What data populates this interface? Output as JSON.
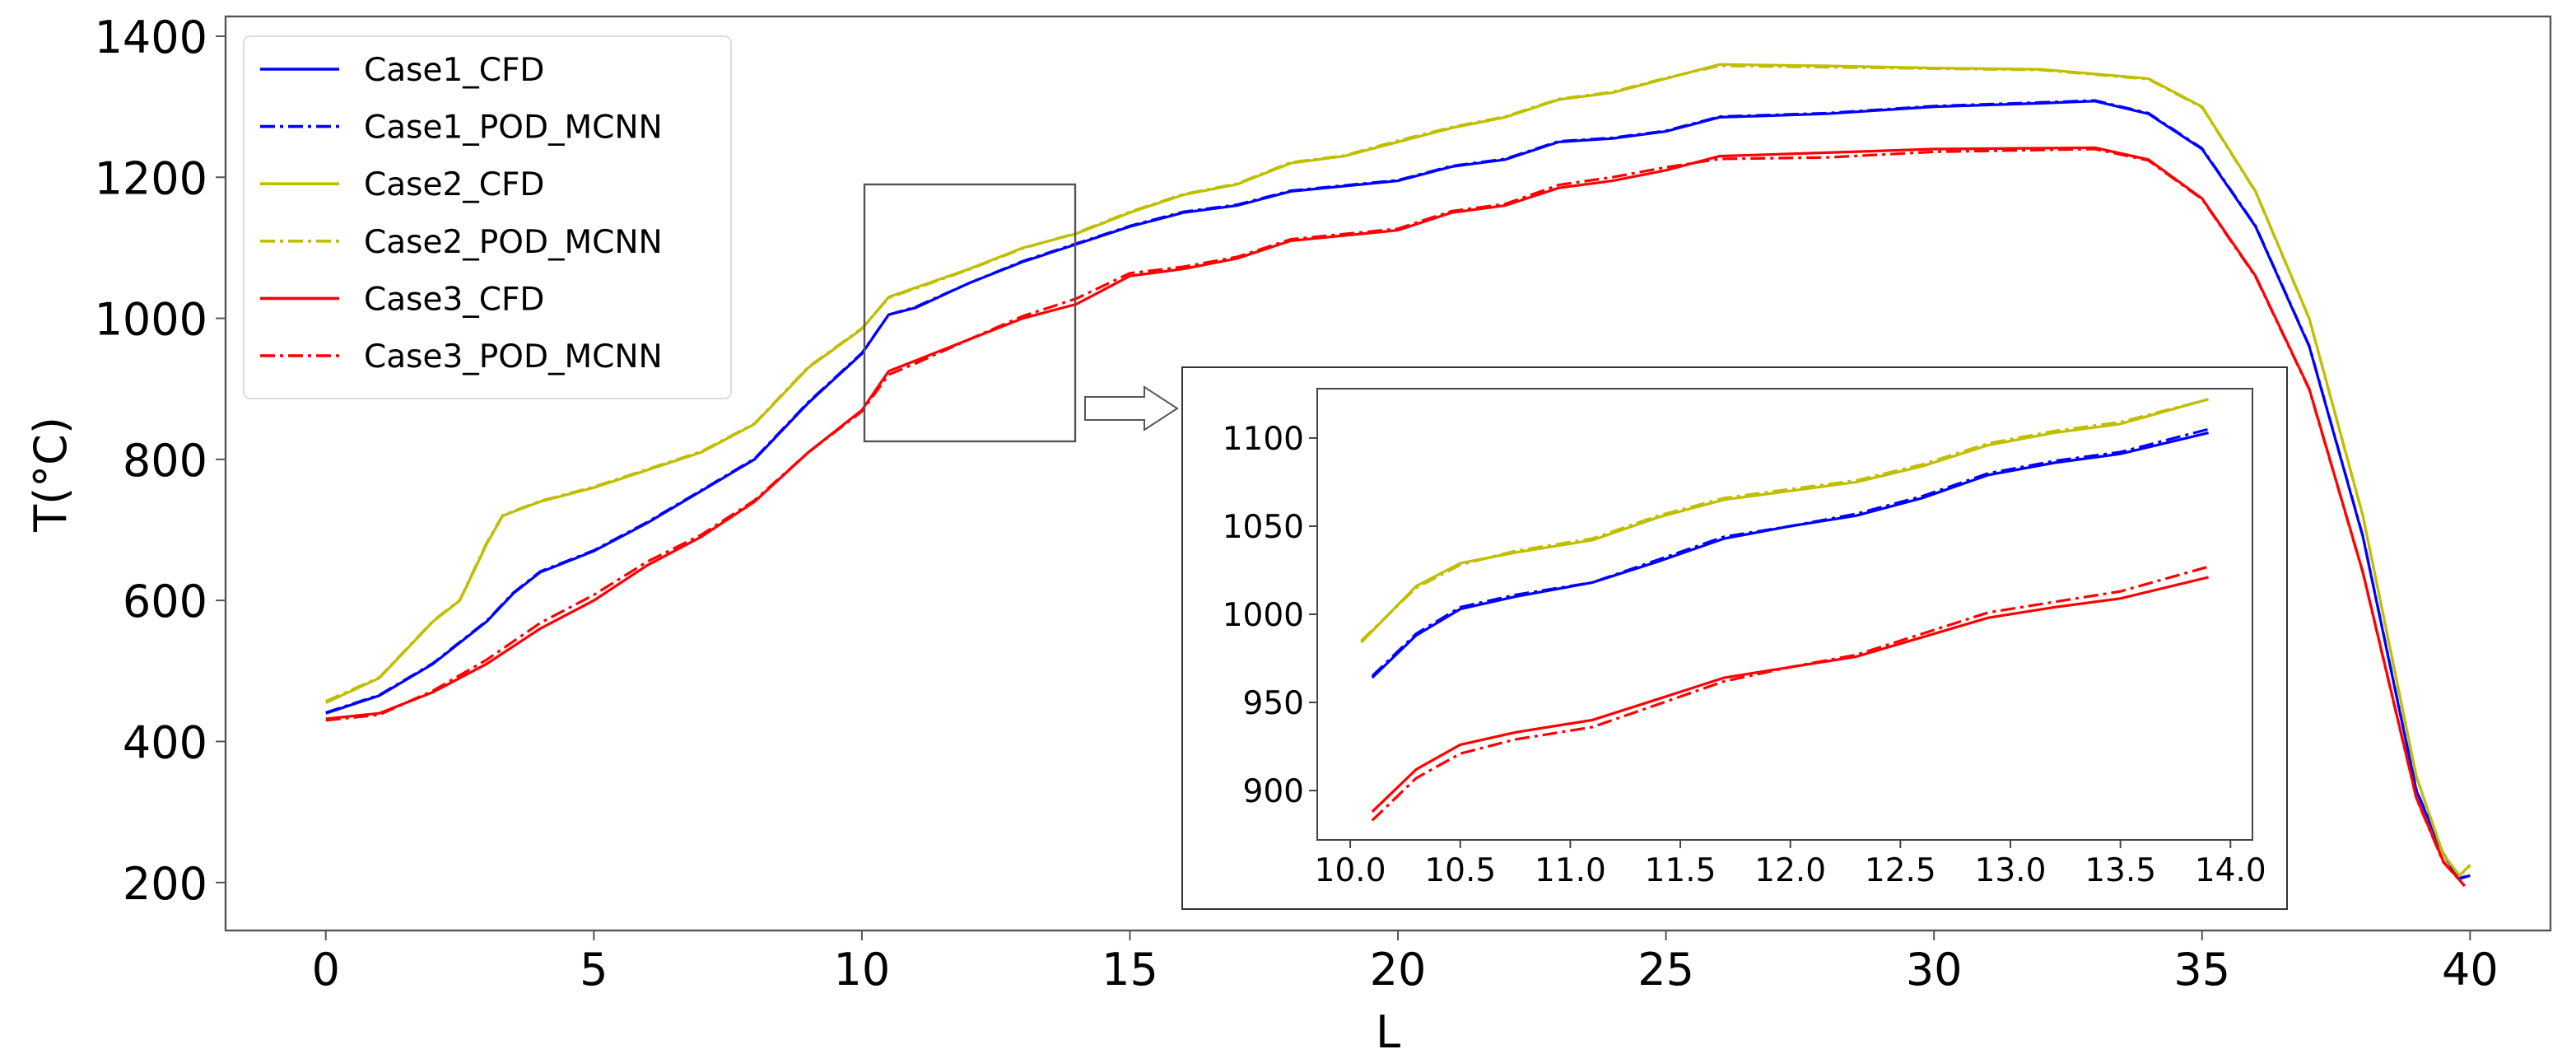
{
  "chart_data": {
    "type": "line",
    "title": "",
    "xlabel": "L",
    "ylabel": "T(°C)",
    "xlim": [
      -1.87,
      41.5
    ],
    "ylim": [
      132,
      1428
    ],
    "xticks": [
      0,
      5,
      10,
      15,
      20,
      25,
      30,
      35,
      40
    ],
    "yticks": [
      200,
      400,
      600,
      800,
      1000,
      1200,
      1400
    ],
    "grid": false,
    "legend_position": "upper left",
    "series": [
      {
        "name": "Case1_CFD",
        "color": "#0000ff",
        "style": "solid",
        "x": [
          0,
          1,
          2,
          3,
          3.5,
          4,
          5,
          6,
          7,
          8,
          9,
          10,
          10.5,
          11,
          12,
          13,
          14,
          15,
          16,
          17,
          18,
          20,
          21,
          22,
          23,
          24,
          25,
          26,
          28,
          30,
          32,
          33,
          34,
          35,
          36,
          37,
          38,
          39,
          39.5,
          39.8,
          40
        ],
        "y": [
          440,
          465,
          510,
          570,
          610,
          640,
          670,
          710,
          755,
          800,
          880,
          950,
          1005,
          1015,
          1050,
          1080,
          1105,
          1130,
          1150,
          1160,
          1180,
          1195,
          1215,
          1225,
          1250,
          1255,
          1265,
          1285,
          1290,
          1300,
          1305,
          1308,
          1290,
          1240,
          1130,
          960,
          690,
          330,
          240,
          205,
          210
        ]
      },
      {
        "name": "Case1_POD_MCNN",
        "color": "#0000ff",
        "style": "dashdot",
        "x": [
          0,
          1,
          2,
          3,
          3.5,
          4,
          5,
          6,
          7,
          8,
          9,
          10,
          10.5,
          11,
          12,
          13,
          14,
          15,
          16,
          17,
          18,
          20,
          21,
          22,
          23,
          24,
          25,
          26,
          28,
          30,
          32,
          33,
          34,
          35,
          36,
          37,
          38,
          39,
          39.5,
          39.8,
          40
        ],
        "y": [
          441,
          466,
          511,
          571,
          611,
          641,
          671,
          711,
          756,
          801,
          881,
          951,
          1005,
          1016,
          1050,
          1081,
          1106,
          1131,
          1151,
          1161,
          1181,
          1196,
          1216,
          1226,
          1251,
          1256,
          1266,
          1286,
          1291,
          1301,
          1306,
          1309,
          1291,
          1241,
          1131,
          961,
          691,
          331,
          241,
          206,
          211
        ]
      },
      {
        "name": "Case2_CFD",
        "color": "#bfbf00",
        "style": "solid",
        "x": [
          0,
          1,
          2,
          2.5,
          3,
          3.3,
          4,
          5,
          6,
          7,
          8,
          9,
          10,
          10.5,
          12,
          13,
          14,
          15,
          16,
          17,
          18,
          19,
          20,
          21,
          22,
          23,
          24,
          25,
          26,
          28,
          30,
          32,
          34,
          35,
          36,
          37,
          38,
          39,
          39.5,
          39.8,
          40
        ],
        "y": [
          455,
          490,
          570,
          600,
          680,
          720,
          740,
          760,
          785,
          810,
          850,
          930,
          985,
          1030,
          1070,
          1100,
          1120,
          1150,
          1175,
          1190,
          1220,
          1230,
          1250,
          1270,
          1285,
          1310,
          1320,
          1340,
          1360,
          1358,
          1355,
          1353,
          1340,
          1300,
          1180,
          1000,
          720,
          350,
          240,
          210,
          225
        ]
      },
      {
        "name": "Case2_POD_MCNN",
        "color": "#bfbf00",
        "style": "dashdot",
        "x": [
          0,
          1,
          2,
          2.5,
          3,
          3.3,
          4,
          5,
          6,
          7,
          8,
          9,
          10,
          10.5,
          12,
          13,
          14,
          15,
          16,
          17,
          18,
          19,
          20,
          21,
          22,
          23,
          24,
          25,
          26,
          28,
          30,
          32,
          34,
          35,
          36,
          37,
          38,
          39,
          39.5,
          39.8,
          40
        ],
        "y": [
          457,
          491,
          571,
          601,
          682,
          721,
          741,
          761,
          786,
          811,
          851,
          931,
          986,
          1029,
          1069,
          1099,
          1121,
          1151,
          1176,
          1191,
          1221,
          1231,
          1252,
          1271,
          1286,
          1311,
          1321,
          1341,
          1358,
          1356,
          1354,
          1352,
          1339,
          1299,
          1179,
          999,
          719,
          349,
          239,
          210,
          224
        ]
      },
      {
        "name": "Case3_CFD",
        "color": "#ff0000",
        "style": "solid",
        "x": [
          0,
          1,
          2,
          3,
          4,
          5,
          6,
          7,
          8,
          9,
          10,
          10.5,
          11,
          12,
          13,
          14,
          15,
          16,
          17,
          18,
          20,
          21,
          22,
          23,
          24,
          25,
          26,
          28,
          30,
          33,
          34,
          35,
          36,
          37,
          38,
          39,
          39.5,
          39.9
        ],
        "y": [
          432,
          440,
          470,
          510,
          560,
          600,
          650,
          690,
          740,
          810,
          870,
          925,
          940,
          970,
          1000,
          1020,
          1060,
          1070,
          1085,
          1110,
          1125,
          1150,
          1160,
          1185,
          1195,
          1210,
          1230,
          1235,
          1240,
          1242,
          1225,
          1170,
          1060,
          900,
          640,
          320,
          230,
          195
        ]
      },
      {
        "name": "Case3_POD_MCNN",
        "color": "#ff0000",
        "style": "dashdot",
        "x": [
          0,
          1,
          2,
          3,
          4,
          5,
          6,
          7,
          8,
          9,
          10,
          10.5,
          11,
          12,
          13,
          14,
          15,
          16,
          17,
          18,
          20,
          21,
          22,
          23,
          24,
          25,
          26,
          28,
          30,
          33,
          34,
          35,
          36,
          37,
          38,
          39,
          39.5,
          39.9
        ],
        "y": [
          430,
          438,
          472,
          516,
          568,
          608,
          655,
          693,
          742,
          810,
          868,
          920,
          936,
          970,
          1003,
          1028,
          1064,
          1073,
          1087,
          1112,
          1127,
          1152,
          1162,
          1189,
          1200,
          1214,
          1226,
          1228,
          1236,
          1240,
          1224,
          1169,
          1059,
          899,
          639,
          319,
          229,
          195
        ]
      }
    ],
    "zoom_box": {
      "xlim": [
        10.0,
        14.0
      ],
      "ylim": [
        824,
        1187
      ]
    },
    "inset": {
      "xlim": [
        9.85,
        14.1
      ],
      "ylim": [
        872,
        1128
      ],
      "xticks": [
        "10.0",
        "10.5",
        "11.0",
        "11.5",
        "12.0",
        "12.5",
        "13.0",
        "13.5",
        "14.0"
      ],
      "yticks": [
        "900",
        "950",
        "1000",
        "1050",
        "1100"
      ],
      "series": [
        {
          "name": "Case1_CFD",
          "x": [
            10.1,
            10.3,
            10.5,
            10.75,
            11.1,
            11.4,
            11.7,
            12.0,
            12.3,
            12.6,
            12.9,
            13.2,
            13.5,
            13.9
          ],
          "y": [
            964,
            988,
            1003,
            1010,
            1018,
            1030,
            1043,
            1050,
            1056,
            1066,
            1079,
            1086,
            1091,
            1103
          ]
        },
        {
          "name": "Case1_POD_MCNN",
          "x": [
            10.1,
            10.3,
            10.5,
            10.75,
            11.1,
            11.4,
            11.7,
            12.0,
            12.3,
            12.6,
            12.9,
            13.2,
            13.5,
            13.9
          ],
          "y": [
            965,
            989,
            1004,
            1011,
            1018,
            1031,
            1044,
            1050,
            1057,
            1067,
            1080,
            1087,
            1092,
            1105
          ]
        },
        {
          "name": "Case2_CFD",
          "x": [
            10.05,
            10.3,
            10.5,
            10.75,
            11.1,
            11.4,
            11.7,
            12.0,
            12.3,
            12.6,
            12.9,
            13.2,
            13.5,
            13.9
          ],
          "y": [
            984,
            1016,
            1029,
            1035,
            1042,
            1055,
            1065,
            1070,
            1075,
            1084,
            1096,
            1103,
            1108,
            1122
          ]
        },
        {
          "name": "Case2_POD_MCNN",
          "x": [
            10.05,
            10.3,
            10.5,
            10.75,
            11.1,
            11.4,
            11.7,
            12.0,
            12.3,
            12.6,
            12.9,
            13.2,
            13.5,
            13.9
          ],
          "y": [
            985,
            1015,
            1028,
            1036,
            1043,
            1056,
            1066,
            1071,
            1076,
            1085,
            1097,
            1104,
            1109,
            1122
          ]
        },
        {
          "name": "Case3_CFD",
          "x": [
            10.1,
            10.3,
            10.5,
            10.75,
            11.1,
            11.4,
            11.7,
            12.0,
            12.3,
            12.6,
            12.9,
            13.2,
            13.5,
            13.9
          ],
          "y": [
            888,
            912,
            926,
            933,
            940,
            952,
            964,
            970,
            976,
            987,
            998,
            1004,
            1009,
            1021
          ]
        },
        {
          "name": "Case3_POD_MCNN",
          "x": [
            10.1,
            10.3,
            10.5,
            10.75,
            11.1,
            11.4,
            11.7,
            12.0,
            12.3,
            12.6,
            12.9,
            13.2,
            13.5,
            13.9
          ],
          "y": [
            883,
            907,
            921,
            929,
            936,
            949,
            962,
            970,
            977,
            989,
            1001,
            1007,
            1013,
            1027
          ]
        }
      ]
    }
  },
  "axes": {
    "xlabel": "L",
    "ylabel": "T(°C)",
    "xtick_labels": [
      "0",
      "5",
      "10",
      "15",
      "20",
      "25",
      "30",
      "35",
      "40"
    ],
    "ytick_labels": [
      "200",
      "400",
      "600",
      "800",
      "1000",
      "1200",
      "1400"
    ]
  },
  "legend": {
    "items": [
      {
        "label": "Case1_CFD",
        "color": "#0000ff",
        "style": "solid"
      },
      {
        "label": "Case1_POD_MCNN",
        "color": "#0000ff",
        "style": "dashdot"
      },
      {
        "label": "Case2_CFD",
        "color": "#bfbf00",
        "style": "solid"
      },
      {
        "label": "Case2_POD_MCNN",
        "color": "#bfbf00",
        "style": "dashdot"
      },
      {
        "label": "Case3_CFD",
        "color": "#ff0000",
        "style": "solid"
      },
      {
        "label": "Case3_POD_MCNN",
        "color": "#ff0000",
        "style": "dashdot"
      }
    ]
  }
}
